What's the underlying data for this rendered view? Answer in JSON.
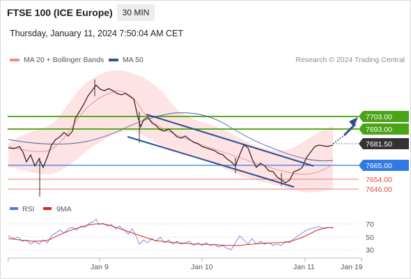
{
  "header": {
    "title": "FTSE 100 (ICE Europe)",
    "timeframe": "30 MIN",
    "timestamp": "Thursday, January 11, 2024 7:50:04 AM CET"
  },
  "legend": {
    "ma20_label": "MA 20 + Bollinger Bands",
    "ma50_label": "MA 50",
    "copyright": "Research © 2024 Trading Central",
    "rsi_label": "RSI",
    "rsi_ma_label": "9MA"
  },
  "colors": {
    "bollinger_band": "#fde0e0",
    "ma20": "#f08a8a",
    "ma50": "#3a4f9a",
    "resistance": "#5aac1e",
    "current": "#3a3a3a",
    "pivot": "#2f7ae5",
    "support": "#e46060",
    "trendline": "#2b4d8f",
    "rsi": "#5577dd",
    "rsi_ma": "#dd2222"
  },
  "levels": [
    {
      "price": "7703.00",
      "kind": "resistance"
    },
    {
      "price": "7693.00",
      "kind": "resistance"
    },
    {
      "price": "7681.50",
      "kind": "current"
    },
    {
      "price": "7665.00",
      "kind": "pivot"
    },
    {
      "price": "7654.00",
      "kind": "support"
    },
    {
      "price": "7646.00",
      "kind": "support"
    }
  ],
  "rsi_axis": {
    "ticks": [
      "70",
      "50",
      "30"
    ]
  },
  "time_axis": {
    "labels": [
      "Jan 9",
      "Jan 10",
      "Jan 11",
      "Jan 19"
    ]
  }
}
